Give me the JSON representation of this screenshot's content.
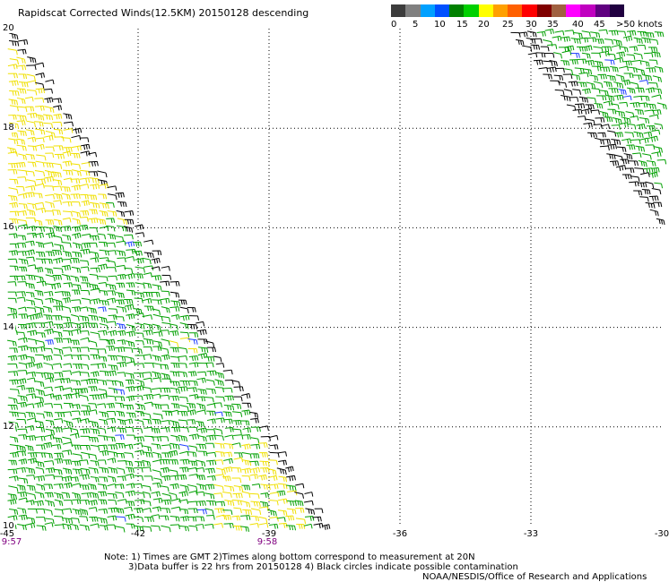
{
  "title": "Rapidscat Corrected Winds(12.5KM) 20150128 descending",
  "legend": {
    "colors": [
      "#3c3c3c",
      "#808080",
      "#00a0ff",
      "#0050ff",
      "#008000",
      "#00d000",
      "#ffff00",
      "#ffa000",
      "#ff6000",
      "#ff0000",
      "#800000",
      "#a06040",
      "#ff00ff",
      "#c000c0",
      "#600080",
      "#200040"
    ],
    "labels": [
      "0",
      "5",
      "10",
      "15",
      "20",
      "25",
      "30",
      "35",
      "40",
      "45",
      ">50 knots"
    ],
    "label_icon": "wind-speed-colorbar"
  },
  "axes": {
    "lon_labels": [
      "-45",
      "-42",
      "-39",
      "-36",
      "-33",
      "-30"
    ],
    "lat_labels": [
      "20",
      "18",
      "16",
      "14",
      "12",
      "10"
    ],
    "lon_range": [
      -45,
      -30
    ],
    "lat_range": [
      10,
      20
    ],
    "grid": "dotted"
  },
  "times": [
    "9:57",
    "9:58"
  ],
  "notes": {
    "line1": "Note: 1) Times are GMT 2)Times along bottom correspond to measurement at 20N",
    "line2": "3)Data buffer is 22 hrs from 20150128 4) Black circles indicate possible contamination",
    "credit": "NOAA/NESDIS/Office of Research and Applications"
  },
  "wind_color_scale": {
    "calm": "#000000",
    "moderate": "#00a000",
    "strong": "#f0e000",
    "light_blue": "#2040ff"
  }
}
